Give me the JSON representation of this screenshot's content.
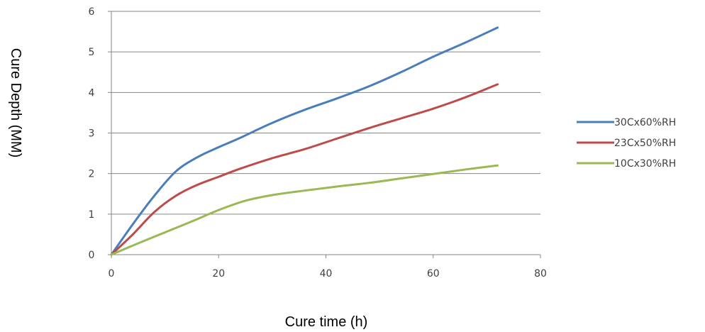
{
  "chart_data": {
    "type": "line",
    "title": "",
    "xlabel": "Cure time (h)",
    "ylabel": "Cure Depth (MM)",
    "xlim": [
      0,
      80
    ],
    "ylim": [
      0,
      6
    ],
    "xticks": [
      0,
      20,
      40,
      60,
      80
    ],
    "yticks": [
      0,
      1,
      2,
      3,
      4,
      5,
      6
    ],
    "grid": "horizontal",
    "legend": "right",
    "series": [
      {
        "name": "30Cx60%RH",
        "color": "#4a7ebb",
        "x": [
          0,
          4,
          8,
          12,
          16,
          20,
          24,
          30,
          36,
          42,
          48,
          54,
          60,
          66,
          72
        ],
        "y": [
          0,
          0.75,
          1.45,
          2.05,
          2.4,
          2.65,
          2.88,
          3.25,
          3.57,
          3.85,
          4.15,
          4.5,
          4.88,
          5.23,
          5.6
        ]
      },
      {
        "name": "23Cx50%RH",
        "color": "#be4b48",
        "x": [
          0,
          4,
          8,
          12,
          16,
          20,
          24,
          30,
          36,
          42,
          48,
          54,
          60,
          66,
          72
        ],
        "y": [
          0,
          0.5,
          1.05,
          1.45,
          1.72,
          1.92,
          2.12,
          2.38,
          2.6,
          2.86,
          3.12,
          3.36,
          3.6,
          3.88,
          4.2
        ]
      },
      {
        "name": "10Cx30%RH",
        "color": "#98b954",
        "x": [
          0,
          5,
          10,
          15,
          20,
          25,
          30,
          36,
          42,
          48,
          54,
          60,
          66,
          72
        ],
        "y": [
          0,
          0.28,
          0.55,
          0.82,
          1.1,
          1.33,
          1.47,
          1.58,
          1.68,
          1.77,
          1.88,
          1.99,
          2.1,
          2.2
        ]
      }
    ]
  }
}
